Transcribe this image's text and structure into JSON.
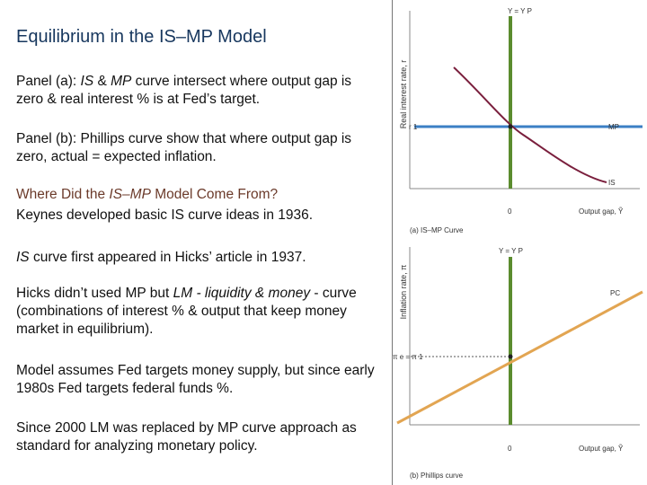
{
  "left": {
    "title": "Equilibrium in the IS–MP Model",
    "p1": {
      "a": "Panel (a): ",
      "b": "IS",
      "c": " & ",
      "d": "MP",
      "e": " curve intersect where output gap is zero & real interest % is at Fed’s target."
    },
    "p2": "Panel (b): Phillips curve show that where output gap is zero, actual = expected inflation.",
    "p3": {
      "a": "Where Did the ",
      "b": "IS–MP",
      "c": " Model Come From?"
    },
    "p4": {
      "a": "Keynes developed basic IS curve ",
      "b": "ideas",
      "c": " in 1936."
    },
    "p5": {
      "a": "IS",
      "b": " curve first appeared in Hicks’ article in 1937."
    },
    "p6": {
      "a": "Hicks didn’t used MP but ",
      "b": "LM - liquidity & money",
      "c": " - curve (combinations of interest % & output that keep money market in equilibrium)."
    },
    "p7": "Model assumes Fed targets money supply, but since early 1980s Fed targets federal funds %.",
    "p8": "Since 2000 LM was replaced by MP curve approach as standard for analyzing monetary policy."
  },
  "panelA": {
    "vertical_label": "Y = Y P",
    "y_axis": "Real interest rate, r",
    "r_tick": "r 1",
    "mp_label": "MP",
    "is_label": "IS",
    "zero": "0",
    "x_axis": "Output gap, Ỹ",
    "caption": "(a) IS–MP Curve"
  },
  "panelB": {
    "vertical_label": "Y = Y P",
    "y_axis": "Inflation rate, π",
    "pi_tick": "π e = π 1",
    "pc_label": "PC",
    "zero": "0",
    "x_axis": "Output gap, Ỹ",
    "caption": "(b) Phillips curve"
  },
  "colors": {
    "vertical": "#5b8c2e",
    "mp": "#3b7fc4",
    "is": "#7a1f3d",
    "pc": "#e2a552",
    "title": "#17375e"
  }
}
